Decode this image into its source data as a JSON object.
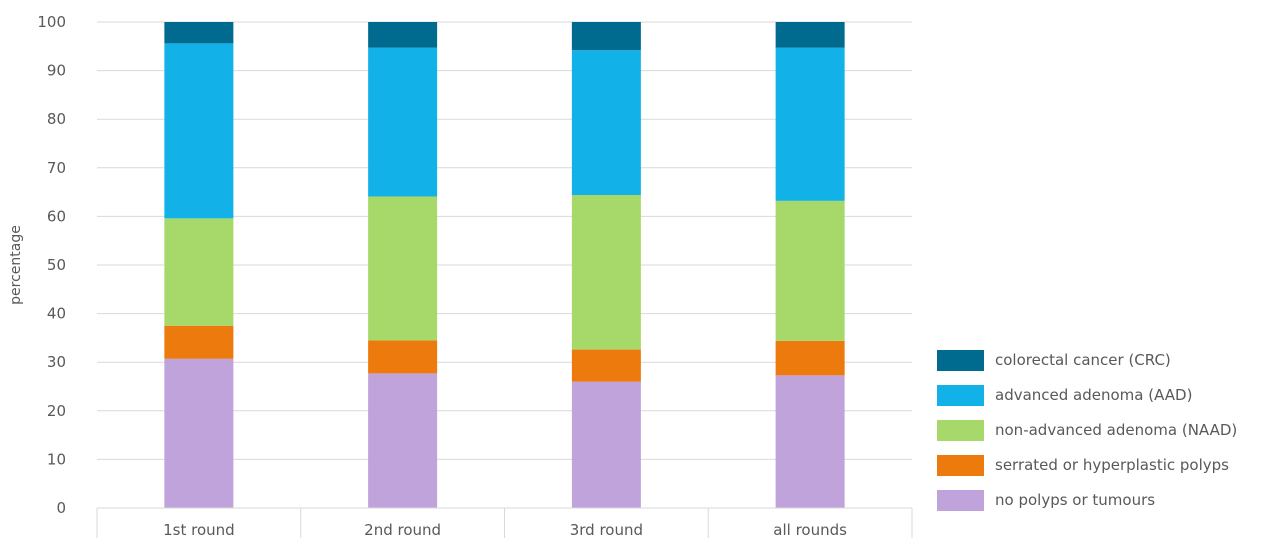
{
  "chart_data": {
    "type": "bar",
    "stacked": true,
    "categories": [
      "1st round",
      "2nd round",
      "3rd round",
      "all rounds"
    ],
    "ylabel": "percentage",
    "ylim": [
      0,
      100
    ],
    "yticks": [
      0,
      10,
      20,
      30,
      40,
      50,
      60,
      70,
      80,
      90,
      100
    ],
    "grid": true,
    "legend_position": "right-bottom",
    "series": [
      {
        "name": "no polyps or tumours",
        "color": "#c0a3da",
        "values": [
          30.7,
          27.7,
          26.0,
          27.3
        ]
      },
      {
        "name": "serrated or hyperplastic polyps",
        "color": "#ec7a0c",
        "values": [
          6.8,
          6.8,
          6.6,
          7.1
        ]
      },
      {
        "name": "non-advanced adenoma (NAAD)",
        "color": "#a6d86a",
        "values": [
          22.1,
          29.6,
          31.8,
          28.8
        ]
      },
      {
        "name": "advanced adenoma (AAD)",
        "color": "#12b2e8",
        "values": [
          36.0,
          30.6,
          29.8,
          31.5
        ]
      },
      {
        "name": "colorectal cancer (CRC)",
        "color": "#006b8f",
        "values": [
          4.4,
          5.3,
          5.8,
          5.3
        ]
      }
    ]
  }
}
